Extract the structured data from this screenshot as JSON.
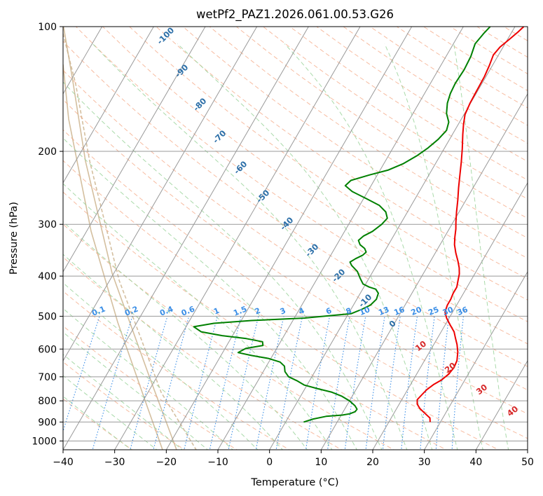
{
  "chart_data": {
    "type": "line",
    "title": "wetPf2_PAZ1.2026.061.00.53.G26",
    "xlabel": "Temperature (°C)",
    "ylabel": "Pressure (hPa)",
    "xlim": [
      -40,
      50
    ],
    "ylim": [
      1050,
      100
    ],
    "y_scale": "log",
    "skew_t": true,
    "grid": true,
    "x_ticks": [
      "−40",
      "−30",
      "−20",
      "−10",
      "0",
      "10",
      "20",
      "30",
      "40",
      "50"
    ],
    "y_ticks": [
      "100",
      "200",
      "300",
      "400",
      "500",
      "600",
      "700",
      "800",
      "900",
      "1000"
    ],
    "colors": {
      "temperature": "#ee0000",
      "dewpoint": "#008000",
      "isotherm": "#999999",
      "dry_adiabat": "#f4a582",
      "moist_adiabat": "#9bd39b",
      "mixing_ratio": "#3a8ee6",
      "curved_reference": "#cdb48e",
      "dry_adiabat_label": "#d62728",
      "upper_label": "#2c6fa8"
    },
    "series": [
      {
        "points": [
          [
            28.0,
            900
          ],
          [
            27.5,
            880
          ],
          [
            26.5,
            865
          ],
          [
            25.5,
            850
          ],
          [
            24.5,
            835
          ],
          [
            23.5,
            815
          ],
          [
            23.0,
            795
          ],
          [
            23.3,
            775
          ],
          [
            23.7,
            752
          ],
          [
            24.5,
            730
          ],
          [
            25.5,
            712
          ],
          [
            26.2,
            690
          ],
          [
            26.5,
            665
          ],
          [
            26.3,
            640
          ],
          [
            25.5,
            610
          ],
          [
            24.5,
            585
          ],
          [
            23.5,
            565
          ],
          [
            22.5,
            545
          ],
          [
            21.0,
            525
          ],
          [
            19.5,
            505
          ],
          [
            18.5,
            488
          ],
          [
            18.2,
            470
          ],
          [
            18.2,
            455
          ],
          [
            18.0,
            440
          ],
          [
            18.0,
            425
          ],
          [
            17.5,
            410
          ],
          [
            17.0,
            395
          ],
          [
            16.3,
            382
          ],
          [
            15.3,
            368
          ],
          [
            14.0,
            352
          ],
          [
            12.8,
            336
          ],
          [
            12.0,
            322
          ],
          [
            11.3,
            308
          ],
          [
            10.5,
            296
          ],
          [
            9.5,
            280
          ],
          [
            8.4,
            262
          ],
          [
            7.2,
            245
          ],
          [
            6.0,
            228
          ],
          [
            4.8,
            212
          ],
          [
            3.5,
            197
          ],
          [
            2.0,
            182
          ],
          [
            1.0,
            172
          ],
          [
            0.2,
            163
          ],
          [
            -0.1,
            153
          ],
          [
            -0.2,
            143
          ],
          [
            -0.3,
            132
          ],
          [
            -0.6,
            124
          ],
          [
            -1.0,
            117
          ],
          [
            -0.6,
            112
          ],
          [
            0.4,
            107
          ],
          [
            1.2,
            103
          ],
          [
            1.7,
            100
          ]
        ]
      },
      {
        "points": [
          [
            3.5,
            900
          ],
          [
            5.0,
            885
          ],
          [
            7.2,
            872
          ],
          [
            10.2,
            866
          ],
          [
            11.5,
            860
          ],
          [
            12.3,
            850
          ],
          [
            12.4,
            838
          ],
          [
            11.6,
            822
          ],
          [
            10.0,
            800
          ],
          [
            8.0,
            780
          ],
          [
            5.5,
            762
          ],
          [
            2.5,
            748
          ],
          [
            -0.5,
            733
          ],
          [
            -2.5,
            715
          ],
          [
            -4.5,
            700
          ],
          [
            -5.8,
            680
          ],
          [
            -6.5,
            660
          ],
          [
            -7.8,
            645
          ],
          [
            -10.5,
            632
          ],
          [
            -14.0,
            622
          ],
          [
            -17.0,
            612
          ],
          [
            -16.0,
            598
          ],
          [
            -13.0,
            588
          ],
          [
            -13.5,
            576
          ],
          [
            -17.0,
            566
          ],
          [
            -22.0,
            557
          ],
          [
            -26.5,
            545
          ],
          [
            -28.5,
            530
          ],
          [
            -25.0,
            520
          ],
          [
            -18.0,
            512
          ],
          [
            -8.0,
            505
          ],
          [
            0.5,
            493
          ],
          [
            2.0,
            482
          ],
          [
            3.3,
            470
          ],
          [
            3.8,
            455
          ],
          [
            3.5,
            440
          ],
          [
            2.5,
            430
          ],
          [
            1.0,
            425
          ],
          [
            -0.5,
            418
          ],
          [
            -1.7,
            405
          ],
          [
            -3.0,
            390
          ],
          [
            -4.8,
            377
          ],
          [
            -5.5,
            370
          ],
          [
            -4.8,
            363
          ],
          [
            -3.8,
            356
          ],
          [
            -3.5,
            350
          ],
          [
            -4.2,
            343
          ],
          [
            -5.5,
            336
          ],
          [
            -6.3,
            328
          ],
          [
            -5.8,
            320
          ],
          [
            -4.6,
            312
          ],
          [
            -3.6,
            300
          ],
          [
            -3.2,
            290
          ],
          [
            -4.2,
            280
          ],
          [
            -6.2,
            270
          ],
          [
            -9.5,
            260
          ],
          [
            -13.0,
            250
          ],
          [
            -15.0,
            242
          ],
          [
            -14.5,
            235
          ],
          [
            -11.5,
            228
          ],
          [
            -8.5,
            222
          ],
          [
            -6.2,
            214
          ],
          [
            -4.5,
            205
          ],
          [
            -3.2,
            196
          ],
          [
            -2.2,
            187
          ],
          [
            -1.6,
            178
          ],
          [
            -2.1,
            170
          ],
          [
            -3.5,
            162
          ],
          [
            -4.5,
            153
          ],
          [
            -5.0,
            145
          ],
          [
            -5.2,
            137
          ],
          [
            -5.0,
            127
          ],
          [
            -5.2,
            118
          ],
          [
            -5.8,
            110
          ],
          [
            -5.3,
            104
          ],
          [
            -4.8,
            100
          ]
        ]
      }
    ],
    "mixing_ratio_labels": [
      "0.1",
      "0.2",
      "0.4",
      "0.6",
      "1",
      "1.5",
      "2",
      "3",
      "4",
      "6",
      "8",
      "10",
      "13",
      "16",
      "20",
      "25",
      "30",
      "36"
    ],
    "dry_adiabat_labels": [
      "10",
      "20",
      "30",
      "40"
    ],
    "upper_labels": [
      "-100",
      "-90",
      "-80",
      "-70",
      "-60",
      "-50",
      "-40",
      "-30",
      "-20",
      "-10",
      "0"
    ]
  }
}
